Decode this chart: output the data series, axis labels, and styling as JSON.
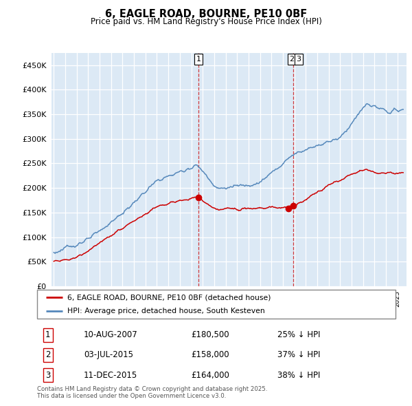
{
  "title": "6, EAGLE ROAD, BOURNE, PE10 0BF",
  "subtitle": "Price paid vs. HM Land Registry's House Price Index (HPI)",
  "red_label": "6, EAGLE ROAD, BOURNE, PE10 0BF (detached house)",
  "blue_label": "HPI: Average price, detached house, South Kesteven",
  "footer_line1": "Contains HM Land Registry data © Crown copyright and database right 2025.",
  "footer_line2": "This data is licensed under the Open Government Licence v3.0.",
  "ylim": [
    0,
    475000
  ],
  "xlim_start": 1994.8,
  "xlim_end": 2025.8,
  "background_color": "#ffffff",
  "plot_bg_color": "#dce9f5",
  "grid_color": "#ffffff",
  "red_color": "#cc0000",
  "blue_color": "#5588bb",
  "blue_fill_color": "#dce9f5",
  "t1_x": 2007.62,
  "t1_y": 180500,
  "t2_x": 2015.5,
  "t2_y": 158000,
  "t3_x": 2015.92,
  "t3_y": 164000,
  "yticks": [
    0,
    50000,
    100000,
    150000,
    200000,
    250000,
    300000,
    350000,
    400000,
    450000
  ]
}
